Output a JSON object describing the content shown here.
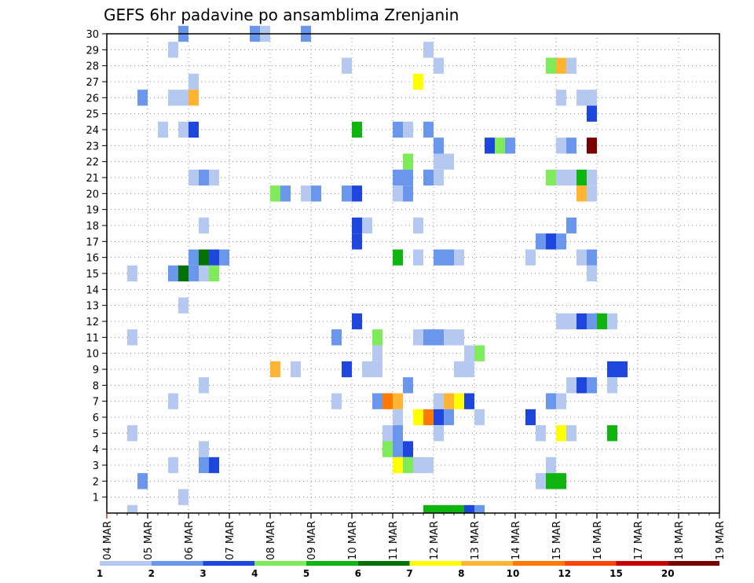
{
  "chart_data": {
    "type": "heatmap",
    "title": "GEFS 6hr padavine po ansamblima Zrenjanin",
    "xlabel": "",
    "ylabel": "",
    "x_tick_labels": [
      "04 MAR",
      "05 MAR",
      "06 MAR",
      "07 MAR",
      "08 MAR",
      "09 MAR",
      "10 MAR",
      "11 MAR",
      "12 MAR",
      "13 MAR",
      "14 MAR",
      "15 MAR",
      "16 MAR",
      "17 MAR",
      "18 MAR",
      "19 MAR"
    ],
    "y_tick_labels": [
      "1",
      "2",
      "3",
      "4",
      "5",
      "6",
      "7",
      "8",
      "9",
      "10",
      "11",
      "12",
      "13",
      "14",
      "15",
      "16",
      "17",
      "18",
      "19",
      "20",
      "21",
      "22",
      "23",
      "24",
      "25",
      "26",
      "27",
      "28",
      "29",
      "30"
    ],
    "xlim_steps": [
      0,
      60
    ],
    "ylim_members": [
      0,
      30
    ],
    "grid": true,
    "legend_placement": "bottom",
    "legend": {
      "labels": [
        "1",
        "2",
        "3",
        "4",
        "5",
        "6",
        "7",
        "8",
        "10",
        "12",
        "15",
        "20"
      ],
      "colors": [
        "#b4c8f0",
        "#6a96ec",
        "#1e46dc",
        "#7fea5a",
        "#0fb40f",
        "#057005",
        "#ffff00",
        "#ffb432",
        "#ff7a00",
        "#ff4400",
        "#c80000",
        "#780000"
      ]
    },
    "cells": [
      [
        3.5,
        30,
        2
      ],
      [
        7,
        30,
        2
      ],
      [
        7.5,
        30,
        1
      ],
      [
        9.5,
        30,
        2
      ],
      [
        3,
        29,
        1
      ],
      [
        15.5,
        29,
        1
      ],
      [
        11.5,
        28,
        1
      ],
      [
        16,
        28,
        1
      ],
      [
        21.5,
        28,
        4
      ],
      [
        22,
        28,
        8
      ],
      [
        22.5,
        28,
        1
      ],
      [
        4,
        27,
        1
      ],
      [
        15,
        27,
        7
      ],
      [
        1.5,
        26,
        2
      ],
      [
        3,
        26,
        1
      ],
      [
        3.5,
        26,
        1
      ],
      [
        4,
        26,
        8
      ],
      [
        22,
        26,
        1
      ],
      [
        23,
        26,
        1
      ],
      [
        23.5,
        26,
        1
      ],
      [
        23.5,
        25,
        3
      ],
      [
        2.5,
        24,
        1
      ],
      [
        3.5,
        24,
        1
      ],
      [
        4,
        24,
        3
      ],
      [
        12,
        24,
        5
      ],
      [
        14,
        24,
        2
      ],
      [
        14.5,
        24,
        1
      ],
      [
        15.5,
        24,
        2
      ],
      [
        16,
        23,
        2
      ],
      [
        18.5,
        23,
        3
      ],
      [
        19,
        23,
        4
      ],
      [
        19.5,
        23,
        2
      ],
      [
        22,
        23,
        1
      ],
      [
        22.5,
        23,
        2
      ],
      [
        23.5,
        23,
        20
      ],
      [
        14.5,
        22,
        4
      ],
      [
        16,
        22,
        1
      ],
      [
        16.5,
        22,
        1
      ],
      [
        4,
        21,
        1
      ],
      [
        4.5,
        21,
        2
      ],
      [
        5,
        21,
        1
      ],
      [
        14,
        21,
        2
      ],
      [
        14.5,
        21,
        2
      ],
      [
        15.5,
        21,
        2
      ],
      [
        16,
        21,
        1
      ],
      [
        21.5,
        21,
        4
      ],
      [
        22,
        21,
        1
      ],
      [
        22.5,
        21,
        1
      ],
      [
        23,
        21,
        5
      ],
      [
        23.5,
        21,
        1
      ],
      [
        8,
        20,
        4
      ],
      [
        8.5,
        20,
        2
      ],
      [
        9.5,
        20,
        1
      ],
      [
        10,
        20,
        2
      ],
      [
        11.5,
        20,
        2
      ],
      [
        12,
        20,
        3
      ],
      [
        14,
        20,
        1
      ],
      [
        14.5,
        20,
        2
      ],
      [
        23,
        20,
        8
      ],
      [
        23.5,
        20,
        1
      ],
      [
        4.5,
        18,
        1
      ],
      [
        12,
        18,
        3
      ],
      [
        12.5,
        18,
        1
      ],
      [
        15,
        18,
        1
      ],
      [
        22.5,
        18,
        2
      ],
      [
        12,
        17,
        3
      ],
      [
        21,
        17,
        2
      ],
      [
        21.5,
        17,
        3
      ],
      [
        22,
        17,
        2
      ],
      [
        4,
        16,
        2
      ],
      [
        4.5,
        16,
        6
      ],
      [
        5,
        16,
        3
      ],
      [
        5.5,
        16,
        2
      ],
      [
        14,
        16,
        5
      ],
      [
        15,
        16,
        1
      ],
      [
        16,
        16,
        2
      ],
      [
        16.5,
        16,
        2
      ],
      [
        17,
        16,
        1
      ],
      [
        20.5,
        16,
        1
      ],
      [
        23,
        16,
        1
      ],
      [
        23.5,
        16,
        2
      ],
      [
        1,
        15,
        1
      ],
      [
        3,
        15,
        2
      ],
      [
        3.5,
        15,
        6
      ],
      [
        4,
        15,
        2
      ],
      [
        4.5,
        15,
        1
      ],
      [
        5,
        15,
        4
      ],
      [
        23.5,
        15,
        1
      ],
      [
        3.5,
        13,
        1
      ],
      [
        12,
        12,
        3
      ],
      [
        22,
        12,
        1
      ],
      [
        22.5,
        12,
        1
      ],
      [
        23,
        12,
        3
      ],
      [
        23.5,
        12,
        2
      ],
      [
        24,
        12,
        5
      ],
      [
        24.5,
        12,
        1
      ],
      [
        1,
        11,
        1
      ],
      [
        11,
        11,
        2
      ],
      [
        13,
        11,
        4
      ],
      [
        15,
        11,
        1
      ],
      [
        15.5,
        11,
        2
      ],
      [
        16,
        11,
        2
      ],
      [
        16.5,
        11,
        1
      ],
      [
        17,
        11,
        1
      ],
      [
        13,
        10,
        1
      ],
      [
        17.5,
        10,
        1
      ],
      [
        18,
        10,
        4
      ],
      [
        8,
        9,
        8
      ],
      [
        9,
        9,
        1
      ],
      [
        11.5,
        9,
        3
      ],
      [
        12.5,
        9,
        1
      ],
      [
        13,
        9,
        1
      ],
      [
        17,
        9,
        1
      ],
      [
        17.5,
        9,
        1
      ],
      [
        24.5,
        9,
        3
      ],
      [
        25,
        9,
        3
      ],
      [
        4.5,
        8,
        1
      ],
      [
        14.5,
        8,
        2
      ],
      [
        22.5,
        8,
        1
      ],
      [
        23,
        8,
        3
      ],
      [
        23.5,
        8,
        2
      ],
      [
        24.5,
        8,
        1
      ],
      [
        3,
        7,
        1
      ],
      [
        11,
        7,
        1
      ],
      [
        13,
        7,
        2
      ],
      [
        13.5,
        7,
        9
      ],
      [
        14,
        7,
        8
      ],
      [
        16,
        7,
        1
      ],
      [
        16.5,
        7,
        8
      ],
      [
        17,
        7,
        7
      ],
      [
        17.5,
        7,
        3
      ],
      [
        21.5,
        7,
        2
      ],
      [
        22,
        7,
        1
      ],
      [
        14,
        6,
        1
      ],
      [
        15,
        6,
        7
      ],
      [
        15.5,
        6,
        9
      ],
      [
        16,
        6,
        3
      ],
      [
        16.5,
        6,
        2
      ],
      [
        18,
        6,
        1
      ],
      [
        20.5,
        6,
        3
      ],
      [
        1,
        5,
        1
      ],
      [
        13.5,
        5,
        1
      ],
      [
        14,
        5,
        2
      ],
      [
        16,
        5,
        1
      ],
      [
        21,
        5,
        1
      ],
      [
        22,
        5,
        7
      ],
      [
        22.5,
        5,
        1
      ],
      [
        24.5,
        5,
        5
      ],
      [
        4.5,
        4,
        1
      ],
      [
        13.5,
        4,
        4
      ],
      [
        14,
        4,
        2
      ],
      [
        14.5,
        4,
        3
      ],
      [
        3,
        3,
        1
      ],
      [
        4.5,
        3,
        2
      ],
      [
        5,
        3,
        3
      ],
      [
        14,
        3,
        7
      ],
      [
        14.5,
        3,
        4
      ],
      [
        15,
        3,
        1
      ],
      [
        15.5,
        3,
        1
      ],
      [
        21.5,
        3,
        1
      ],
      [
        1.5,
        2,
        2
      ],
      [
        21,
        2,
        1
      ],
      [
        21.5,
        2,
        5
      ],
      [
        22,
        2,
        5
      ],
      [
        3.5,
        1,
        1
      ]
    ],
    "bottom_row_cells": [
      [
        1,
        1
      ],
      [
        15.5,
        5
      ],
      [
        16,
        5
      ],
      [
        16.5,
        5
      ],
      [
        17,
        5
      ],
      [
        17.5,
        3
      ],
      [
        18,
        2
      ]
    ]
  }
}
